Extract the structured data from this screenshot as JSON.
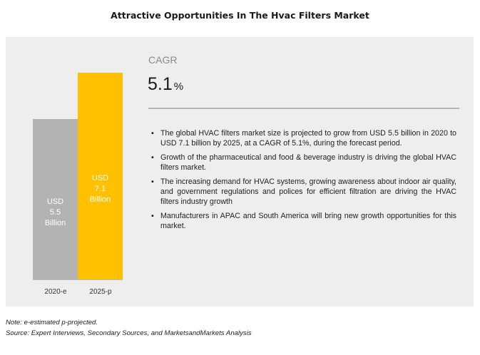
{
  "title": "Attractive Opportunities In The Hvac Filters Market",
  "chart_data": {
    "type": "bar",
    "categories": [
      "2020-e",
      "2025-p"
    ],
    "values": [
      5.5,
      7.1
    ],
    "unit": "USD Billion",
    "ylim": [
      0,
      7.1
    ],
    "colors": [
      "#b3b3b3",
      "#ffc000"
    ],
    "data_labels": [
      [
        "USD",
        "5.5",
        "Billion"
      ],
      [
        "USD",
        "7.1",
        "Billion"
      ]
    ]
  },
  "cagr": {
    "label": "CAGR",
    "value": "5.1",
    "unit": "%"
  },
  "bullets": [
    "The global HVAC filters market size is projected to grow from USD 5.5 billion in 2020 to USD 7.1 billion by 2025, at a CAGR of 5.1%, during the forecast period.",
    "Growth of the pharmaceutical and food & beverage industry is driving the global HVAC filters market.",
    "The increasing demand for HVAC systems, growing awareness about indoor air quality, and government regulations and polices for efficient filtration are driving the HVAC filters industry growth",
    "Manufacturers in APAC and South America will bring new growth opportunities for this market."
  ],
  "notes": {
    "note": "Note: e-estimated p-projected.",
    "source": "Source: Expert Interviews, Secondary Sources, and MarketsandMarkets Analysis"
  }
}
